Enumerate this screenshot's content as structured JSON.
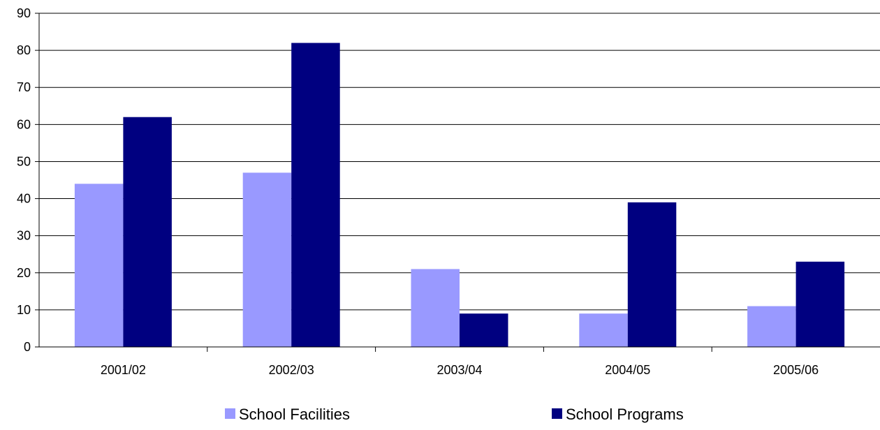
{
  "chart_data": {
    "type": "bar",
    "title": "",
    "xlabel": "",
    "ylabel": "",
    "categories": [
      "2001/02",
      "2002/03",
      "2003/04",
      "2004/05",
      "2005/06"
    ],
    "series": [
      {
        "name": "School Facilities",
        "color": "#9999ff",
        "values": [
          44,
          47,
          21,
          9,
          11
        ]
      },
      {
        "name": "School Programs",
        "color": "#000080",
        "values": [
          62,
          82,
          9,
          39,
          23
        ]
      }
    ],
    "ylim": [
      0,
      90
    ],
    "yticks": [
      0,
      10,
      20,
      30,
      40,
      50,
      60,
      70,
      80,
      90
    ],
    "grid": true,
    "legend_position": "bottom"
  }
}
